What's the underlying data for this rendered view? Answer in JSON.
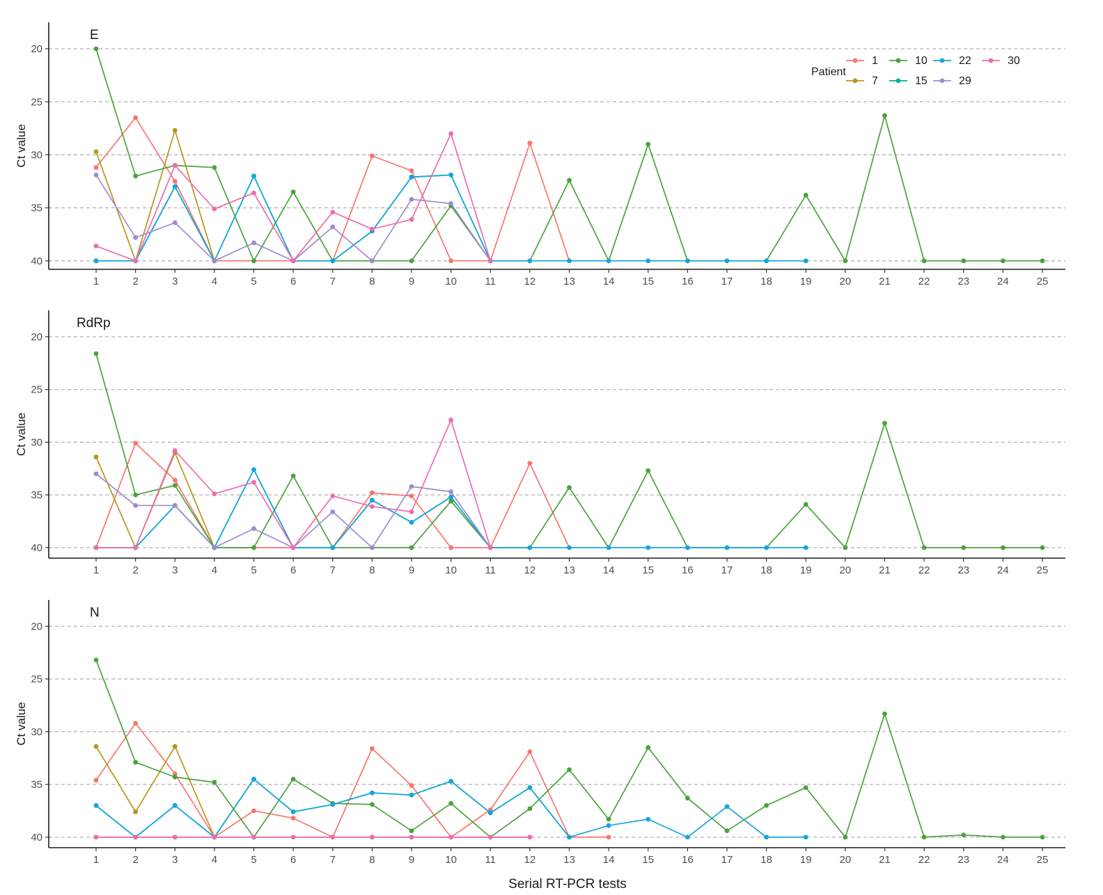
{
  "figure": {
    "xlabel": "Serial RT-PCR tests",
    "ylabel": "Ct value",
    "legend": {
      "title": "Patient",
      "placement": "top-right of first panel",
      "entries": [
        {
          "name": "1",
          "color": "#F8766D"
        },
        {
          "name": "10",
          "color": "#49A33A"
        },
        {
          "name": "22",
          "color": "#15A6DB"
        },
        {
          "name": "30",
          "color": "#EE6BAE"
        },
        {
          "name": "7",
          "color": "#B8961A"
        },
        {
          "name": "15",
          "color": "#00B09A"
        },
        {
          "name": "29",
          "color": "#9F8BD0"
        }
      ]
    }
  },
  "chart_data": [
    {
      "type": "line",
      "title": "E",
      "xlabel": "",
      "ylabel": "Ct value",
      "x_ticks": [
        1,
        2,
        3,
        4,
        5,
        6,
        7,
        8,
        9,
        10,
        11,
        12,
        13,
        14,
        15,
        16,
        17,
        18,
        19,
        20,
        21,
        22,
        23,
        24,
        25
      ],
      "y_ticks": [
        20,
        25,
        30,
        35,
        40
      ],
      "ylim": [
        17.5,
        40.8
      ],
      "y_reversed": true,
      "grid": "horizontal dashed",
      "series": [
        {
          "name": "1",
          "color": "#F8766D",
          "x": [
            1,
            2,
            3,
            4,
            5,
            6,
            7,
            8,
            9,
            10,
            11,
            12,
            13
          ],
          "y": [
            31.2,
            26.5,
            32.5,
            40,
            40,
            40,
            40,
            30.1,
            31.5,
            40,
            40,
            28.9,
            40
          ]
        },
        {
          "name": "7",
          "color": "#B8961A",
          "x": [
            1,
            2,
            3,
            4
          ],
          "y": [
            29.7,
            40,
            27.7,
            40
          ]
        },
        {
          "name": "10",
          "color": "#49A33A",
          "x": [
            1,
            2,
            3,
            4,
            5,
            6,
            7,
            8,
            9,
            10,
            11,
            12,
            13,
            14,
            15,
            16,
            17,
            18,
            19,
            20,
            21,
            22,
            23,
            24,
            25
          ],
          "y": [
            20,
            32,
            31,
            31.2,
            40,
            33.5,
            40,
            40,
            40,
            34.8,
            40,
            40,
            32.4,
            40,
            29,
            40,
            40,
            40,
            33.8,
            40,
            26.3,
            40,
            40,
            40,
            40
          ]
        },
        {
          "name": "15",
          "color": "#00B09A",
          "x": [
            1,
            2,
            3,
            4,
            5,
            6,
            7,
            8,
            9,
            10,
            11
          ],
          "y": [
            40,
            40,
            33,
            40,
            32,
            40,
            40,
            37.2,
            32.1,
            31.9,
            40
          ]
        },
        {
          "name": "22",
          "color": "#15A6DB",
          "x": [
            1,
            2,
            3,
            4,
            5,
            6,
            7,
            8,
            9,
            10,
            11,
            12,
            13,
            14,
            15,
            16,
            17,
            18,
            19
          ],
          "y": [
            40,
            40,
            33,
            40,
            32,
            40,
            40,
            37.2,
            32.1,
            31.9,
            40,
            40,
            40,
            40,
            40,
            40,
            40,
            40,
            40
          ]
        },
        {
          "name": "29",
          "color": "#9F8BD0",
          "x": [
            1,
            2,
            3,
            4,
            5,
            6,
            7,
            8,
            9,
            10,
            11
          ],
          "y": [
            31.9,
            37.8,
            36.4,
            40,
            38.3,
            40,
            36.8,
            40,
            34.2,
            34.6,
            40
          ]
        },
        {
          "name": "30",
          "color": "#EE6BAE",
          "x": [
            1,
            2,
            3,
            4,
            5,
            6,
            7,
            8,
            9,
            10,
            11
          ],
          "y": [
            38.6,
            40,
            31,
            35.1,
            33.6,
            40,
            35.4,
            37,
            36.1,
            28,
            40
          ]
        }
      ]
    },
    {
      "type": "line",
      "title": "RdRp",
      "xlabel": "",
      "ylabel": "Ct value",
      "x_ticks": [
        1,
        2,
        3,
        4,
        5,
        6,
        7,
        8,
        9,
        10,
        11,
        12,
        13,
        14,
        15,
        16,
        17,
        18,
        19,
        20,
        21,
        22,
        23,
        24,
        25
      ],
      "y_ticks": [
        20,
        25,
        30,
        35,
        40
      ],
      "ylim": [
        17.5,
        41.0
      ],
      "y_reversed": true,
      "grid": "horizontal dashed",
      "series": [
        {
          "name": "1",
          "color": "#F8766D",
          "x": [
            1,
            2,
            3,
            4,
            5,
            6,
            7,
            8,
            9,
            10,
            11,
            12,
            13
          ],
          "y": [
            40,
            30.1,
            33.6,
            40,
            40,
            40,
            40,
            34.8,
            35.1,
            40,
            40,
            32,
            40
          ]
        },
        {
          "name": "7",
          "color": "#B8961A",
          "x": [
            1,
            2,
            3,
            4
          ],
          "y": [
            31.4,
            40,
            31,
            40
          ]
        },
        {
          "name": "10",
          "color": "#49A33A",
          "x": [
            1,
            2,
            3,
            4,
            5,
            6,
            7,
            8,
            9,
            10,
            11,
            12,
            13,
            14,
            15,
            16,
            17,
            18,
            19,
            20,
            21,
            22,
            23,
            24,
            25
          ],
          "y": [
            21.6,
            35,
            34.1,
            40,
            40,
            33.2,
            40,
            40,
            40,
            35.6,
            40,
            40,
            34.3,
            40,
            32.7,
            40,
            40,
            40,
            35.9,
            40,
            28.2,
            40,
            40,
            40,
            40
          ]
        },
        {
          "name": "15",
          "color": "#00B09A",
          "x": [
            1,
            2,
            3,
            4,
            5,
            6,
            7,
            8,
            9,
            10,
            11
          ],
          "y": [
            40,
            40,
            36,
            40,
            32.6,
            40,
            40,
            35.5,
            37.6,
            35.2,
            40
          ]
        },
        {
          "name": "22",
          "color": "#15A6DB",
          "x": [
            1,
            2,
            3,
            4,
            5,
            6,
            7,
            8,
            9,
            10,
            11,
            12,
            13,
            14,
            15,
            16,
            17,
            18,
            19
          ],
          "y": [
            40,
            40,
            36,
            40,
            32.6,
            40,
            40,
            35.5,
            37.6,
            35.2,
            40,
            40,
            40,
            40,
            40,
            40,
            40,
            40,
            40
          ]
        },
        {
          "name": "29",
          "color": "#9F8BD0",
          "x": [
            1,
            2,
            3,
            4,
            5,
            6,
            7,
            8,
            9,
            10,
            11
          ],
          "y": [
            33,
            36,
            36,
            40,
            38.2,
            40,
            36.6,
            40,
            34.2,
            34.7,
            40
          ]
        },
        {
          "name": "30",
          "color": "#EE6BAE",
          "x": [
            1,
            2,
            3,
            4,
            5,
            6,
            7,
            8,
            9,
            10,
            11
          ],
          "y": [
            40,
            40,
            30.8,
            34.9,
            33.8,
            40,
            35.1,
            36.1,
            36.6,
            27.9,
            40
          ]
        }
      ]
    },
    {
      "type": "line",
      "title": "N",
      "xlabel": "Serial RT-PCR tests",
      "ylabel": "Ct value",
      "x_ticks": [
        1,
        2,
        3,
        4,
        5,
        6,
        7,
        8,
        9,
        10,
        11,
        12,
        13,
        14,
        15,
        16,
        17,
        18,
        19,
        20,
        21,
        22,
        23,
        24,
        25
      ],
      "y_ticks": [
        20,
        25,
        30,
        35,
        40
      ],
      "ylim": [
        17.5,
        41.0
      ],
      "y_reversed": true,
      "grid": "horizontal dashed",
      "series": [
        {
          "name": "1",
          "color": "#F8766D",
          "x": [
            1,
            2,
            3,
            4,
            5,
            6,
            7,
            8,
            9,
            10,
            11,
            12,
            13,
            14
          ],
          "y": [
            34.6,
            29.2,
            34,
            40,
            37.5,
            38.2,
            40,
            31.6,
            35.1,
            40,
            37.4,
            31.9,
            40,
            40
          ]
        },
        {
          "name": "7",
          "color": "#B8961A",
          "x": [
            1,
            2,
            3,
            4
          ],
          "y": [
            31.4,
            37.6,
            31.4,
            40
          ]
        },
        {
          "name": "10",
          "color": "#49A33A",
          "x": [
            1,
            2,
            3,
            4,
            5,
            6,
            7,
            8,
            9,
            10,
            11,
            12,
            13,
            14,
            15,
            16,
            17,
            18,
            19,
            20,
            21,
            22,
            23,
            24,
            25
          ],
          "y": [
            23.2,
            32.9,
            34.3,
            34.8,
            40,
            34.5,
            36.8,
            36.9,
            39.4,
            36.8,
            40,
            37.3,
            33.6,
            38.3,
            31.5,
            36.3,
            39.4,
            37,
            35.3,
            40,
            28.3,
            40,
            39.8,
            40,
            40
          ]
        },
        {
          "name": "15",
          "color": "#00B09A",
          "x": [
            1,
            2,
            3,
            4,
            5,
            6,
            7,
            8,
            9,
            10,
            11,
            12,
            13
          ],
          "y": [
            37,
            40,
            37,
            40,
            34.5,
            37.6,
            36.9,
            35.8,
            36,
            34.7,
            37.7,
            35.3,
            40
          ]
        },
        {
          "name": "22",
          "color": "#15A6DB",
          "x": [
            1,
            2,
            3,
            4,
            5,
            6,
            7,
            8,
            9,
            10,
            11,
            12,
            13,
            14,
            15,
            16,
            17,
            18,
            19
          ],
          "y": [
            37,
            40,
            37,
            40,
            34.5,
            37.6,
            36.9,
            35.8,
            36,
            34.7,
            37.7,
            35.3,
            40,
            38.9,
            38.3,
            40,
            37.1,
            40,
            40
          ]
        },
        {
          "name": "29",
          "color": "#9F8BD0",
          "x": [
            1,
            2,
            3,
            4,
            5,
            6,
            7,
            8,
            9,
            10,
            11,
            12
          ],
          "y": [
            40,
            40,
            40,
            40,
            40,
            40,
            40,
            40,
            40,
            40,
            40,
            40
          ]
        },
        {
          "name": "30",
          "color": "#EE6BAE",
          "x": [
            1,
            2,
            3,
            4,
            5,
            6,
            7,
            8,
            9,
            10,
            11,
            12
          ],
          "y": [
            40,
            40,
            40,
            40,
            40,
            40,
            40,
            40,
            40,
            40,
            40,
            40
          ]
        }
      ]
    }
  ]
}
